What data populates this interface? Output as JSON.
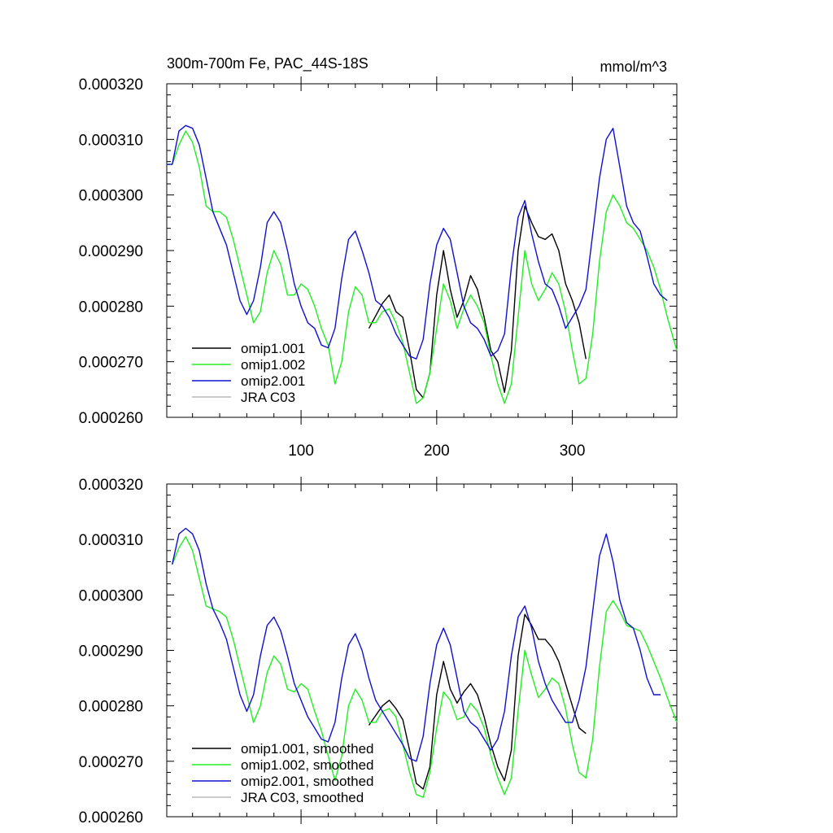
{
  "colors": {
    "omip1_001": "#000000",
    "omip1_002": "#22ee22",
    "omip2_001": "#1010d0",
    "jra_c03": "#bbbbbb",
    "axes": "#000000"
  },
  "chart_data": [
    {
      "type": "line",
      "title": "300m-700m Fe, PAC_44S-18S",
      "title_right": "mmol/m^3",
      "xlim": [
        1,
        377
      ],
      "ylim": [
        0.00026,
        0.00032
      ],
      "x_ticks": [
        100,
        200,
        300
      ],
      "x_tick_labels": [
        "100",
        "200",
        "300"
      ],
      "y_ticks": [
        0.00026,
        0.00027,
        0.00028,
        0.00029,
        0.0003,
        0.00031,
        0.00032
      ],
      "y_tick_labels": [
        "0.000260",
        "0.000270",
        "0.000280",
        "0.000290",
        "0.000300",
        "0.000310",
        "0.000320"
      ],
      "legend_position": "bottom-left",
      "legend": [
        "omip1.001",
        "omip1.002",
        "omip2.001",
        "JRA C03"
      ],
      "series": [
        {
          "name": "omip1.001",
          "color": "#000000",
          "x": [
            150,
            160,
            165,
            170,
            175,
            180,
            185,
            190,
            195,
            200,
            205,
            210,
            215,
            220,
            225,
            230,
            235,
            240,
            245,
            250,
            255,
            260,
            265,
            270,
            275,
            280,
            285,
            290,
            295,
            300,
            305,
            310
          ],
          "y": [
            0.000276,
            0.0002805,
            0.000282,
            0.000279,
            0.000278,
            0.000272,
            0.000265,
            0.0002635,
            0.000268,
            0.000282,
            0.00029,
            0.000283,
            0.000278,
            0.000281,
            0.0002855,
            0.000283,
            0.000278,
            0.000272,
            0.00027,
            0.0002645,
            0.000272,
            0.00029,
            0.000298,
            0.000295,
            0.0002925,
            0.000292,
            0.000293,
            0.00029,
            0.000284,
            0.000281,
            0.000277,
            0.0002705
          ]
        },
        {
          "name": "omip1.002",
          "color": "#22ee22",
          "x": [
            1,
            5,
            10,
            15,
            20,
            25,
            30,
            35,
            40,
            45,
            50,
            55,
            60,
            65,
            70,
            75,
            80,
            85,
            90,
            95,
            100,
            105,
            110,
            115,
            120,
            125,
            130,
            135,
            140,
            145,
            150,
            155,
            160,
            165,
            170,
            175,
            180,
            185,
            190,
            195,
            200,
            205,
            210,
            215,
            220,
            225,
            230,
            235,
            240,
            245,
            250,
            255,
            260,
            265,
            270,
            275,
            280,
            285,
            290,
            295,
            300,
            305,
            310,
            315,
            320,
            325,
            330,
            335,
            340,
            345,
            350,
            355,
            360,
            365,
            370,
            377
          ],
          "y": [
            0.0003055,
            0.0003055,
            0.000309,
            0.0003115,
            0.0003095,
            0.000305,
            0.000298,
            0.000297,
            0.000297,
            0.000296,
            0.000292,
            0.000287,
            0.000282,
            0.000277,
            0.000279,
            0.000286,
            0.00029,
            0.0002875,
            0.000282,
            0.000282,
            0.000284,
            0.000283,
            0.00028,
            0.000276,
            0.000273,
            0.000266,
            0.00027,
            0.000279,
            0.0002835,
            0.000282,
            0.000277,
            0.000277,
            0.000279,
            0.0002795,
            0.000277,
            0.0002735,
            0.000268,
            0.0002625,
            0.0002635,
            0.000268,
            0.000276,
            0.000284,
            0.000281,
            0.000276,
            0.0002795,
            0.000282,
            0.00028,
            0.000277,
            0.000271,
            0.000266,
            0.0002625,
            0.000266,
            0.000278,
            0.00029,
            0.000284,
            0.000281,
            0.000283,
            0.000286,
            0.000284,
            0.000279,
            0.000272,
            0.000266,
            0.000267,
            0.000275,
            0.000288,
            0.000297,
            0.0003,
            0.000298,
            0.000295,
            0.000294,
            0.000292,
            0.00029,
            0.000287,
            0.000283,
            0.000278,
            0.000272
          ]
        },
        {
          "name": "omip2.001",
          "color": "#1010d0",
          "x": [
            1,
            5,
            10,
            15,
            20,
            25,
            30,
            35,
            40,
            45,
            50,
            55,
            60,
            65,
            70,
            75,
            80,
            85,
            90,
            95,
            100,
            105,
            110,
            115,
            120,
            125,
            130,
            135,
            140,
            145,
            150,
            155,
            160,
            165,
            170,
            175,
            180,
            185,
            190,
            195,
            200,
            205,
            210,
            215,
            220,
            225,
            230,
            235,
            240,
            245,
            250,
            255,
            260,
            265,
            270,
            275,
            280,
            285,
            290,
            295,
            300,
            305,
            310,
            315,
            320,
            325,
            330,
            335,
            340,
            345,
            350,
            355,
            360,
            365,
            370
          ],
          "y": [
            0.0003055,
            0.0003055,
            0.0003115,
            0.0003125,
            0.000312,
            0.000309,
            0.000303,
            0.000297,
            0.000294,
            0.000291,
            0.000286,
            0.000281,
            0.0002785,
            0.000281,
            0.000287,
            0.000295,
            0.000297,
            0.000295,
            0.00029,
            0.000284,
            0.00028,
            0.000277,
            0.000276,
            0.000273,
            0.0002725,
            0.000276,
            0.000285,
            0.000292,
            0.0002935,
            0.00029,
            0.000286,
            0.000281,
            0.00028,
            0.000278,
            0.000275,
            0.000273,
            0.000271,
            0.0002705,
            0.000274,
            0.000284,
            0.000291,
            0.000294,
            0.000292,
            0.000286,
            0.00028,
            0.000277,
            0.000276,
            0.000274,
            0.000271,
            0.000272,
            0.000275,
            0.000287,
            0.000296,
            0.000299,
            0.000293,
            0.000288,
            0.000284,
            0.000283,
            0.00028,
            0.000276,
            0.000278,
            0.00028,
            0.000283,
            0.000293,
            0.000303,
            0.00031,
            0.000312,
            0.000305,
            0.000298,
            0.000295,
            0.0002935,
            0.000289,
            0.000284,
            0.000282,
            0.000281
          ]
        },
        {
          "name": "JRA C03",
          "color": "#bbbbbb",
          "x": [],
          "y": []
        }
      ]
    },
    {
      "type": "line",
      "title": "",
      "xlim": [
        1,
        377
      ],
      "ylim": [
        0.00026,
        0.00032
      ],
      "x_ticks": [
        100,
        200,
        300
      ],
      "x_tick_labels": [],
      "y_ticks": [
        0.00026,
        0.00027,
        0.00028,
        0.00029,
        0.0003,
        0.00031,
        0.00032
      ],
      "y_tick_labels": [
        "0.000260",
        "0.000270",
        "0.000280",
        "0.000290",
        "0.000300",
        "0.000310",
        "0.000320"
      ],
      "legend_position": "bottom-left",
      "legend": [
        "omip1.001, smoothed",
        "omip1.002, smoothed",
        "omip2.001, smoothed",
        "JRA C03, smoothed"
      ],
      "series": [
        {
          "name": "omip1.001, smoothed",
          "color": "#000000",
          "x": [
            150,
            160,
            165,
            170,
            175,
            180,
            185,
            190,
            195,
            200,
            205,
            210,
            215,
            220,
            225,
            230,
            235,
            240,
            245,
            250,
            255,
            260,
            265,
            270,
            275,
            280,
            285,
            290,
            295,
            300,
            305,
            310
          ],
          "y": [
            0.0002765,
            0.00028,
            0.000281,
            0.0002795,
            0.0002775,
            0.000272,
            0.000266,
            0.000265,
            0.000269,
            0.000282,
            0.000288,
            0.000283,
            0.0002805,
            0.0002825,
            0.000284,
            0.000282,
            0.000278,
            0.000273,
            0.000269,
            0.0002665,
            0.000272,
            0.000289,
            0.0002965,
            0.0002945,
            0.000292,
            0.000292,
            0.0002905,
            0.000288,
            0.000284,
            0.00028,
            0.000276,
            0.000275
          ]
        },
        {
          "name": "omip1.002, smoothed",
          "color": "#22ee22",
          "x": [
            5,
            10,
            15,
            20,
            25,
            30,
            35,
            40,
            45,
            50,
            55,
            60,
            65,
            70,
            75,
            80,
            85,
            90,
            95,
            100,
            105,
            110,
            115,
            120,
            125,
            130,
            135,
            140,
            145,
            150,
            155,
            160,
            165,
            170,
            175,
            180,
            185,
            190,
            195,
            200,
            205,
            210,
            215,
            220,
            225,
            230,
            235,
            240,
            245,
            250,
            255,
            260,
            265,
            270,
            275,
            280,
            285,
            290,
            295,
            300,
            305,
            310,
            315,
            320,
            325,
            330,
            335,
            340,
            345,
            350,
            355,
            360,
            365,
            370,
            377
          ],
          "y": [
            0.0003055,
            0.0003085,
            0.0003105,
            0.000308,
            0.000303,
            0.000298,
            0.0002975,
            0.000297,
            0.000296,
            0.000292,
            0.000287,
            0.000282,
            0.000277,
            0.00028,
            0.000286,
            0.000289,
            0.0002875,
            0.000283,
            0.0002825,
            0.000284,
            0.000283,
            0.000279,
            0.0002755,
            0.000271,
            0.0002665,
            0.000271,
            0.00028,
            0.000283,
            0.000281,
            0.000277,
            0.000277,
            0.000279,
            0.0002795,
            0.000278,
            0.000273,
            0.000268,
            0.000264,
            0.0002635,
            0.000268,
            0.000276,
            0.0002825,
            0.000281,
            0.0002775,
            0.000278,
            0.0002805,
            0.000279,
            0.000276,
            0.000271,
            0.000267,
            0.000264,
            0.000267,
            0.000279,
            0.00029,
            0.0002855,
            0.0002815,
            0.000283,
            0.000285,
            0.000284,
            0.0002795,
            0.000273,
            0.000268,
            0.000267,
            0.000274,
            0.000287,
            0.000297,
            0.000299,
            0.000297,
            0.0002945,
            0.000294,
            0.0002935,
            0.000291,
            0.000288,
            0.000285,
            0.0002815,
            0.000277
          ]
        },
        {
          "name": "omip2.001, smoothed",
          "color": "#1010d0",
          "x": [
            5,
            10,
            15,
            20,
            25,
            30,
            35,
            40,
            45,
            50,
            55,
            60,
            65,
            70,
            75,
            80,
            85,
            90,
            95,
            100,
            105,
            110,
            115,
            120,
            125,
            130,
            135,
            140,
            145,
            150,
            155,
            160,
            165,
            170,
            175,
            180,
            185,
            190,
            195,
            200,
            205,
            210,
            215,
            220,
            225,
            230,
            235,
            240,
            245,
            250,
            255,
            260,
            265,
            270,
            275,
            280,
            285,
            290,
            295,
            300,
            305,
            310,
            315,
            320,
            325,
            330,
            335,
            340,
            345,
            350,
            355,
            360,
            365
          ],
          "y": [
            0.0003055,
            0.000311,
            0.000312,
            0.000311,
            0.000308,
            0.000302,
            0.0002975,
            0.000295,
            0.000292,
            0.000287,
            0.000282,
            0.000279,
            0.000282,
            0.000289,
            0.0002945,
            0.000296,
            0.0002935,
            0.000289,
            0.000284,
            0.000281,
            0.000278,
            0.000276,
            0.000274,
            0.0002735,
            0.000277,
            0.000285,
            0.000291,
            0.000293,
            0.00029,
            0.000285,
            0.000281,
            0.000279,
            0.000277,
            0.000275,
            0.000273,
            0.0002705,
            0.00027,
            0.0002745,
            0.000284,
            0.000291,
            0.000294,
            0.000291,
            0.000285,
            0.000279,
            0.000277,
            0.000276,
            0.000274,
            0.000272,
            0.000274,
            0.000279,
            0.000289,
            0.000296,
            0.000298,
            0.000294,
            0.000288,
            0.000284,
            0.000281,
            0.000279,
            0.000277,
            0.000277,
            0.000281,
            0.000287,
            0.000297,
            0.000307,
            0.000311,
            0.000306,
            0.000299,
            0.000295,
            0.000294,
            0.00029,
            0.000285,
            0.000282,
            0.000282
          ]
        },
        {
          "name": "JRA C03, smoothed",
          "color": "#bbbbbb",
          "x": [],
          "y": []
        }
      ]
    }
  ]
}
